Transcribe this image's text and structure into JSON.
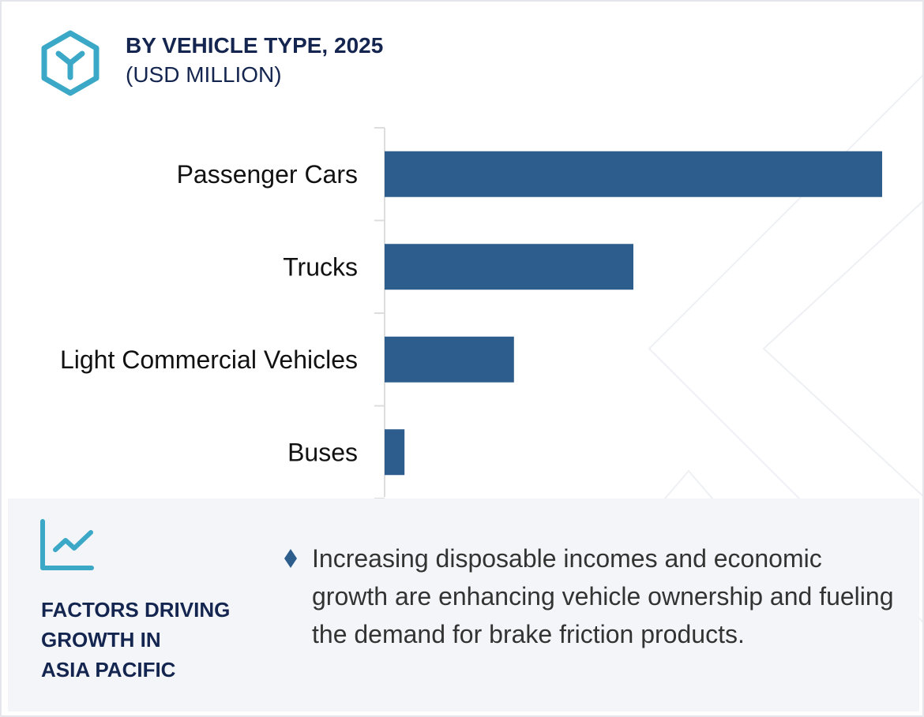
{
  "colors": {
    "bar": "#2d5d8c",
    "accent": "#3aa8c6",
    "title": "#14254f",
    "panel_bg": "#f3f5f9"
  },
  "icons": {
    "header": "hexagon-y-icon",
    "factors": "line-chart-icon",
    "bullet": "diamond-bullet-icon"
  },
  "chart_data": {
    "type": "bar",
    "orientation": "horizontal",
    "title": "BY VEHICLE TYPE, 2025",
    "subtitle": "(USD MILLION)",
    "categories": [
      "Passenger Cars",
      "Trucks",
      "Light Commercial Vehicles",
      "Buses"
    ],
    "values": [
      100,
      50,
      26,
      4
    ],
    "xlabel": "",
    "ylabel": "",
    "grid": false
  },
  "factors": {
    "heading_lines": [
      "FACTORS DRIVING",
      "GROWTH IN",
      "ASIA PACIFIC"
    ],
    "bullet": "Increasing disposable incomes and economic growth are enhancing vehicle ownership and fueling the demand for brake friction products."
  }
}
